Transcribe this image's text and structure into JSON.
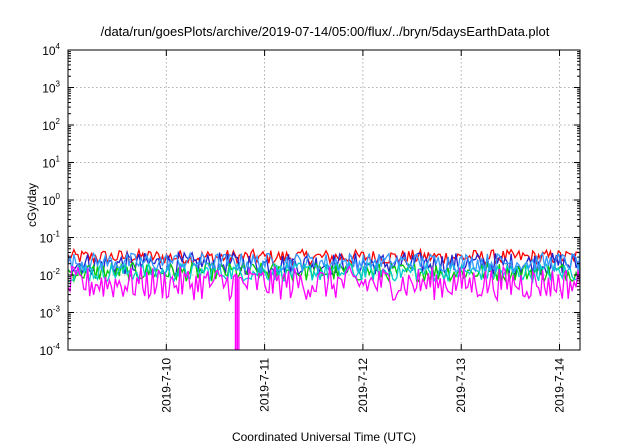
{
  "chart_data": {
    "type": "line",
    "title": "/data/run/goesPlots/archive/2019-07-14/05:00/flux/../bryn/5daysEarthData.plot",
    "xlabel": "Coordinated Universal Time (UTC)",
    "ylabel": "cGy/day",
    "y_scale": "log",
    "ylim": [
      0.0001,
      10000
    ],
    "y_ticks": [
      {
        "base": "10",
        "exp": "-4",
        "value": 0.0001
      },
      {
        "base": "10",
        "exp": "-3",
        "value": 0.001
      },
      {
        "base": "10",
        "exp": "-2",
        "value": 0.01
      },
      {
        "base": "10",
        "exp": "-1",
        "value": 0.1
      },
      {
        "base": "10",
        "exp": "0",
        "value": 1
      },
      {
        "base": "10",
        "exp": "1",
        "value": 10
      },
      {
        "base": "10",
        "exp": "2",
        "value": 100
      },
      {
        "base": "10",
        "exp": "3",
        "value": 1000
      },
      {
        "base": "10",
        "exp": "4",
        "value": 10000
      }
    ],
    "xlim": [
      "2019-07-09 00:00",
      "2019-07-14 05:00"
    ],
    "x_ticks": [
      "2019-7-10",
      "2019-7-11",
      "2019-7-12",
      "2019-7-13",
      "2019-7-14"
    ],
    "x_tick_label_orientation": "vertical",
    "grid": true,
    "grid_style": "dotted",
    "legend": "none",
    "series": [
      {
        "color": "#ff0000",
        "baseline": 0.03,
        "spread": 0.2
      },
      {
        "color": "#2222cc",
        "baseline": 0.02,
        "spread": 0.3
      },
      {
        "color": "#00cc00",
        "baseline": 0.012,
        "spread": 0.25
      },
      {
        "color": "#00cccc",
        "baseline": 0.012,
        "spread": 0.25
      },
      {
        "color": "#3399ff",
        "baseline": 0.022,
        "spread": 0.25
      },
      {
        "color": "#ff00ff",
        "baseline": 0.006,
        "spread": 0.45,
        "dropout": "2019-07-10 17:00"
      }
    ]
  }
}
